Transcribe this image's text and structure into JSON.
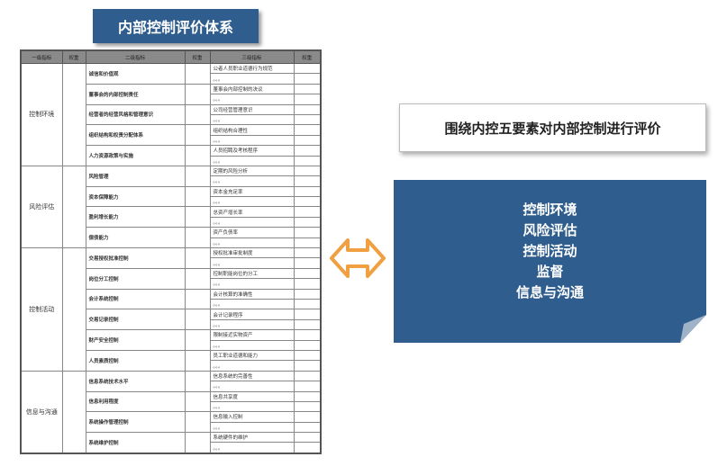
{
  "title": "内部控制评价体系",
  "table": {
    "headers": [
      "一级指标",
      "权重",
      "二级指标",
      "权重",
      "三级指标",
      "权重"
    ],
    "groups": [
      {
        "name": "控制环境",
        "items": [
          {
            "name": "诚信和价值观",
            "sub": [
              "公者人员职业道德行为规范",
              "。。。"
            ]
          },
          {
            "name": "董事会的内部控制责任",
            "sub": [
              "董事会内部控制的决议",
              "。。。"
            ]
          },
          {
            "name": "经营者的经营风格和管理意识",
            "sub": [
              "公司经营管理意识",
              "。。。"
            ]
          },
          {
            "name": "组织结构和权责分配体系",
            "sub": [
              "组织结构合理性",
              "。。。"
            ]
          },
          {
            "name": "人力资源政策与实施",
            "sub": [
              "人员招聘及考核程序",
              "。。。"
            ]
          }
        ]
      },
      {
        "name": "风险评估",
        "items": [
          {
            "name": "风险管理",
            "sub": [
              "定期的风险分析",
              "。。。"
            ]
          },
          {
            "name": "资本保障能力",
            "sub": [
              "资本金充足率",
              "。。。"
            ]
          },
          {
            "name": "盈利增长能力",
            "sub": [
              "总资产增长率",
              "。。。"
            ]
          },
          {
            "name": "偿债能力",
            "sub": [
              "资产负债率",
              "。。。"
            ]
          }
        ]
      },
      {
        "name": "控制活动",
        "items": [
          {
            "name": "交易授权批准控制",
            "sub": [
              "授权批准审批制度",
              "。。。"
            ]
          },
          {
            "name": "岗位分工控制",
            "sub": [
              "控制职能岗位的分工",
              "。。。"
            ]
          },
          {
            "name": "会计系统控制",
            "sub": [
              "会计核算的准确性",
              "。。。"
            ]
          },
          {
            "name": "交易记录控制",
            "sub": [
              "会计记录程序",
              "。。。"
            ]
          },
          {
            "name": "财产安全控制",
            "sub": [
              "限制接近实物资产",
              "。。。"
            ]
          },
          {
            "name": "人员素质控制",
            "sub": [
              "员工职业道德和能力",
              "。。。"
            ]
          }
        ]
      },
      {
        "name": "信息与沟通",
        "items": [
          {
            "name": "信息系统技术水平",
            "sub": [
              "信息系统的完善性",
              "。。。"
            ]
          },
          {
            "name": "信息利用程度",
            "sub": [
              "信息共享度",
              "。。。"
            ]
          },
          {
            "name": "系统操作管理控制",
            "sub": [
              "信息输入控制",
              "。。。"
            ]
          },
          {
            "name": "系统维护控制",
            "sub": [
              "系统硬件的维护",
              "。。。"
            ]
          }
        ]
      }
    ]
  },
  "summary": "围绕内控五要素对内部控制进行评价",
  "elements": [
    "控制环境",
    "风险评估",
    "控制活动",
    "监督",
    "信息与沟通"
  ],
  "colors": {
    "blue": "#2f5d8d",
    "arrow": "#f0a040"
  }
}
